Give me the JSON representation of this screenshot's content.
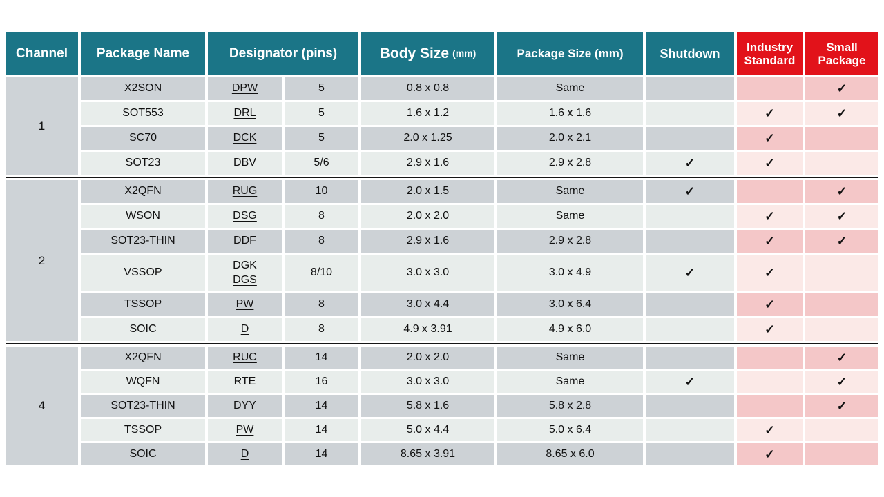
{
  "header": {
    "channel": "Channel",
    "package_name": "Package Name",
    "designator": "Designator (pins)",
    "body_size": "Body Size",
    "body_size_unit": "(mm)",
    "package_size": "Package Size (mm)",
    "shutdown": "Shutdown",
    "industry_line1": "Industry",
    "industry_line2": "Standard",
    "small_line1": "Small",
    "small_line2": "Package"
  },
  "colors": {
    "header_teal": "#1b7587",
    "header_red": "#e2121a",
    "row_dark": "#cdd2d6",
    "row_light": "#e8edeb",
    "pink_dark": "#f4c7c8",
    "pink_light": "#fbe9e7"
  },
  "check_glyph": "✓",
  "groups": [
    {
      "channel": "1",
      "rows": [
        {
          "package": "X2SON",
          "designators": [
            "DPW"
          ],
          "pins": "5",
          "body": "0.8 x 0.8",
          "pkg": "Same",
          "shutdown": "",
          "industry": "",
          "small": "✓"
        },
        {
          "package": "SOT553",
          "designators": [
            "DRL"
          ],
          "pins": "5",
          "body": "1.6 x 1.2",
          "pkg": "1.6 x 1.6",
          "shutdown": "",
          "industry": "✓",
          "small": "✓"
        },
        {
          "package": "SC70",
          "designators": [
            "DCK"
          ],
          "pins": "5",
          "body": "2.0 x 1.25",
          "pkg": "2.0 x 2.1",
          "shutdown": "",
          "industry": "✓",
          "small": ""
        },
        {
          "package": "SOT23",
          "designators": [
            "DBV"
          ],
          "pins": "5/6",
          "body": "2.9 x 1.6",
          "pkg": "2.9 x 2.8",
          "shutdown": "✓",
          "industry": "✓",
          "small": ""
        }
      ]
    },
    {
      "channel": "2",
      "rows": [
        {
          "package": "X2QFN",
          "designators": [
            "RUG"
          ],
          "pins": "10",
          "body": "2.0 x 1.5",
          "pkg": "Same",
          "shutdown": "✓",
          "industry": "",
          "small": "✓"
        },
        {
          "package": "WSON",
          "designators": [
            "DSG"
          ],
          "pins": "8",
          "body": "2.0 x 2.0",
          "pkg": "Same",
          "shutdown": "",
          "industry": "✓",
          "small": "✓"
        },
        {
          "package": "SOT23-THIN",
          "designators": [
            "DDF"
          ],
          "pins": "8",
          "body": "2.9 x 1.6",
          "pkg": "2.9 x 2.8",
          "shutdown": "",
          "industry": "✓",
          "small": "✓"
        },
        {
          "package": "VSSOP",
          "designators": [
            "DGK",
            "DGS"
          ],
          "pins": "8/10",
          "body": "3.0 x 3.0",
          "pkg": "3.0 x 4.9",
          "shutdown": "✓",
          "industry": "✓",
          "small": ""
        },
        {
          "package": "TSSOP",
          "designators": [
            "PW"
          ],
          "pins": "8",
          "body": "3.0 x 4.4",
          "pkg": "3.0 x 6.4",
          "shutdown": "",
          "industry": "✓",
          "small": ""
        },
        {
          "package": "SOIC",
          "designators": [
            "D"
          ],
          "pins": "8",
          "body": "4.9 x 3.91",
          "pkg": "4.9 x 6.0",
          "shutdown": "",
          "industry": "✓",
          "small": ""
        }
      ]
    },
    {
      "channel": "4",
      "rows": [
        {
          "package": "X2QFN",
          "designators": [
            "RUC"
          ],
          "pins": "14",
          "body": "2.0 x 2.0",
          "pkg": "Same",
          "shutdown": "",
          "industry": "",
          "small": "✓"
        },
        {
          "package": "WQFN",
          "designators": [
            "RTE"
          ],
          "pins": "16",
          "body": "3.0 x 3.0",
          "pkg": "Same",
          "shutdown": "✓",
          "industry": "",
          "small": "✓"
        },
        {
          "package": "SOT23-THIN",
          "designators": [
            "DYY"
          ],
          "pins": "14",
          "body": "5.8 x 1.6",
          "pkg": "5.8 x 2.8",
          "shutdown": "",
          "industry": "",
          "small": "✓"
        },
        {
          "package": "TSSOP",
          "designators": [
            "PW"
          ],
          "pins": "14",
          "body": "5.0 x 4.4",
          "pkg": "5.0 x 6.4",
          "shutdown": "",
          "industry": "✓",
          "small": ""
        },
        {
          "package": "SOIC",
          "designators": [
            "D"
          ],
          "pins": "14",
          "body": "8.65 x 3.91",
          "pkg": "8.65 x 6.0",
          "shutdown": "",
          "industry": "✓",
          "small": ""
        }
      ]
    }
  ]
}
